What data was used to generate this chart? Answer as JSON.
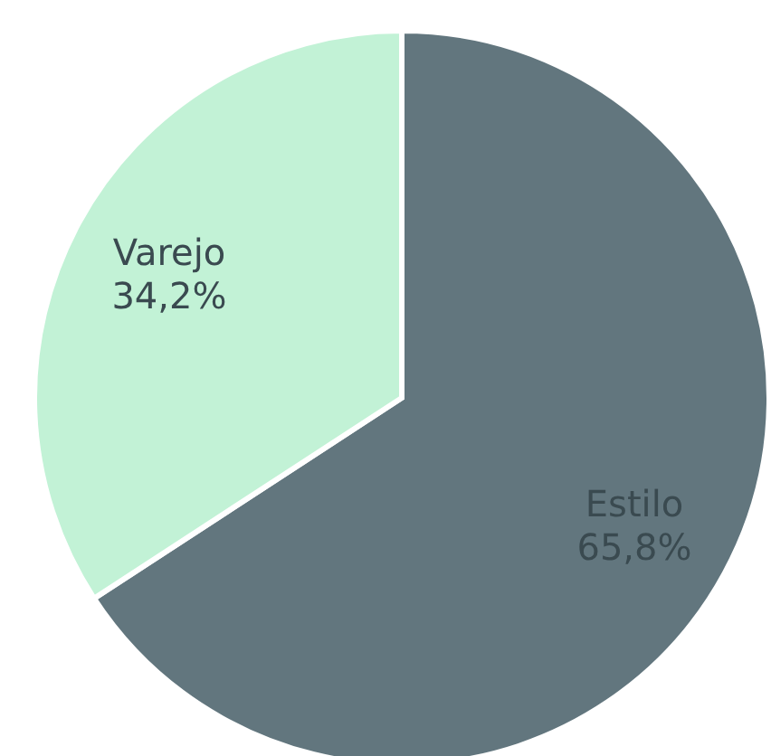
{
  "chart_data": {
    "type": "pie",
    "categories": [
      "Estilo",
      "Varejo"
    ],
    "values": [
      65.8,
      34.2
    ],
    "colors": [
      "#62767e",
      "#c2f2d6"
    ],
    "value_labels": [
      "65,8%",
      "34,2%"
    ]
  }
}
